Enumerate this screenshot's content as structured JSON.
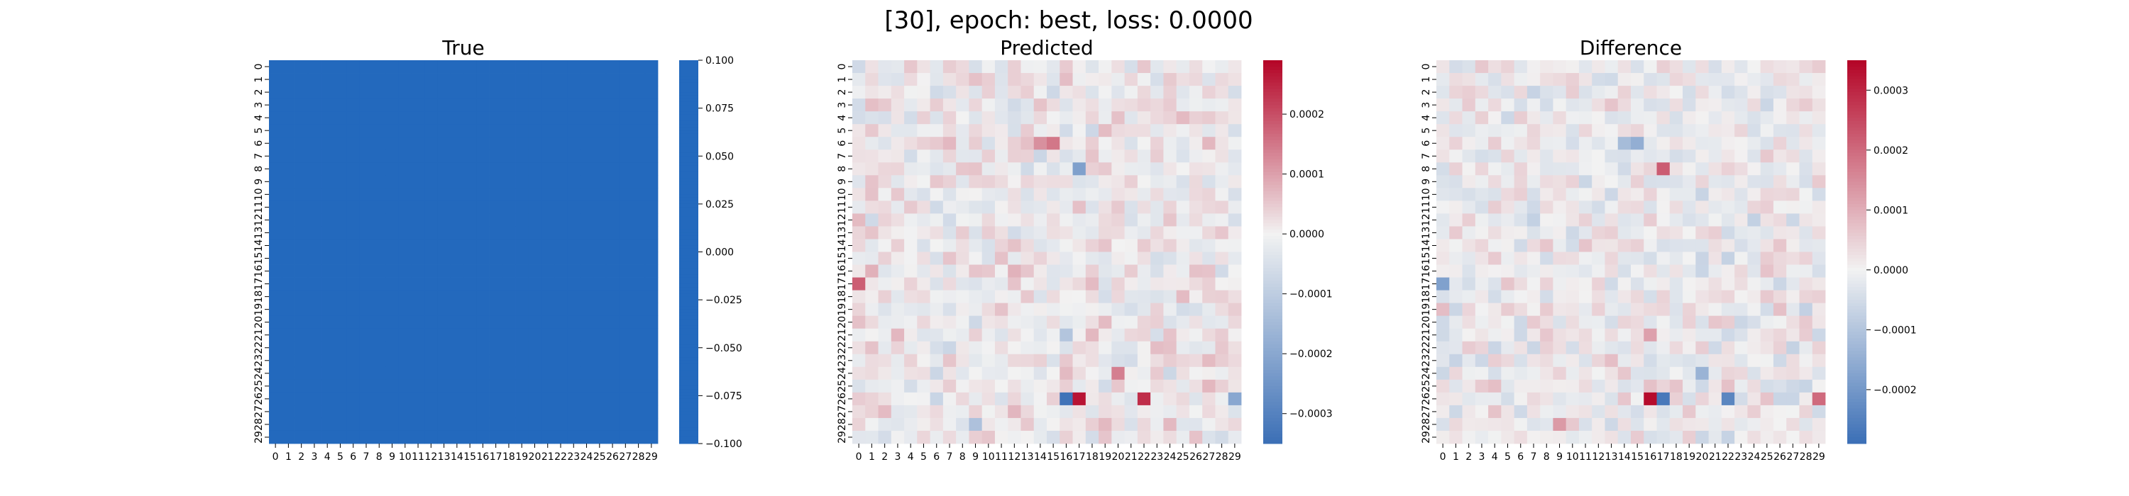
{
  "figure": {
    "title": "[30], epoch: best, loss: 0.0000"
  },
  "palette": {
    "low": "#3b6fb6",
    "mid": "#f2f2f2",
    "high": "#b40426",
    "flat": "#2369bd"
  },
  "chart_data": [
    {
      "type": "heatmap",
      "title": "True",
      "rows": 30,
      "cols": 30,
      "row_labels": [
        "0",
        "1",
        "2",
        "3",
        "4",
        "5",
        "6",
        "7",
        "8",
        "9",
        "10",
        "11",
        "12",
        "13",
        "14",
        "15",
        "16",
        "17",
        "18",
        "19",
        "20",
        "21",
        "22",
        "23",
        "24",
        "25",
        "26",
        "27",
        "28",
        "29"
      ],
      "col_labels": [
        "0",
        "1",
        "2",
        "3",
        "4",
        "5",
        "6",
        "7",
        "8",
        "9",
        "10",
        "11",
        "12",
        "13",
        "14",
        "15",
        "16",
        "17",
        "18",
        "19",
        "20",
        "21",
        "22",
        "23",
        "24",
        "25",
        "26",
        "27",
        "28",
        "29"
      ],
      "uniform_value": 0,
      "vmin": -0.1,
      "vmax": 0.1,
      "colorbar_ticks": [
        0.1,
        0.075,
        0.05,
        0.025,
        0.0,
        -0.025,
        -0.05,
        -0.075,
        -0.1
      ],
      "colorbar_tick_labels": [
        "0.100",
        "0.075",
        "0.050",
        "0.025",
        "0.000",
        "−0.025",
        "−0.050",
        "−0.075",
        "−0.100"
      ]
    },
    {
      "type": "heatmap",
      "title": "Predicted",
      "rows": 30,
      "cols": 30,
      "row_labels": [
        "0",
        "1",
        "2",
        "3",
        "4",
        "5",
        "6",
        "7",
        "8",
        "9",
        "10",
        "11",
        "12",
        "13",
        "14",
        "15",
        "16",
        "17",
        "18",
        "19",
        "20",
        "21",
        "22",
        "23",
        "24",
        "25",
        "26",
        "27",
        "28",
        "29"
      ],
      "col_labels": [
        "0",
        "1",
        "2",
        "3",
        "4",
        "5",
        "6",
        "7",
        "8",
        "9",
        "10",
        "11",
        "12",
        "13",
        "14",
        "15",
        "16",
        "17",
        "18",
        "19",
        "20",
        "21",
        "22",
        "23",
        "24",
        "25",
        "26",
        "27",
        "28",
        "29"
      ],
      "vmin": -0.00035,
      "vmax": 0.00029,
      "colorbar_ticks": [
        0.0002,
        0.0001,
        0.0,
        -0.0001,
        -0.0002,
        -0.0003
      ],
      "colorbar_tick_labels": [
        "0.0002",
        "0.0001",
        "0.0000",
        "−0.0001",
        "−0.0002",
        "−0.0003"
      ],
      "noise_scale": 5e-05,
      "highlights": [
        {
          "row": 26,
          "col": 16,
          "value": -0.00034
        },
        {
          "row": 26,
          "col": 17,
          "value": 0.00027
        },
        {
          "row": 26,
          "col": 22,
          "value": 0.00024
        },
        {
          "row": 26,
          "col": 29,
          "value": -0.0002
        },
        {
          "row": 8,
          "col": 17,
          "value": -0.00022
        },
        {
          "row": 17,
          "col": 0,
          "value": 0.00018
        },
        {
          "row": 28,
          "col": 9,
          "value": -0.00013
        },
        {
          "row": 6,
          "col": 15,
          "value": 0.00015
        },
        {
          "row": 6,
          "col": 14,
          "value": 0.00012
        },
        {
          "row": 24,
          "col": 20,
          "value": 0.00014
        },
        {
          "row": 21,
          "col": 16,
          "value": -0.00012
        }
      ]
    },
    {
      "type": "heatmap",
      "title": "Difference",
      "rows": 30,
      "cols": 30,
      "row_labels": [
        "0",
        "1",
        "2",
        "3",
        "4",
        "5",
        "6",
        "7",
        "8",
        "9",
        "10",
        "11",
        "12",
        "13",
        "14",
        "15",
        "16",
        "17",
        "18",
        "19",
        "20",
        "21",
        "22",
        "23",
        "24",
        "25",
        "26",
        "27",
        "28",
        "29"
      ],
      "col_labels": [
        "0",
        "1",
        "2",
        "3",
        "4",
        "5",
        "6",
        "7",
        "8",
        "9",
        "10",
        "11",
        "12",
        "13",
        "14",
        "15",
        "16",
        "17",
        "18",
        "19",
        "20",
        "21",
        "22",
        "23",
        "24",
        "25",
        "26",
        "27",
        "28",
        "29"
      ],
      "vmin": -0.00029,
      "vmax": 0.00035,
      "colorbar_ticks": [
        0.0003,
        0.0002,
        0.0001,
        0.0,
        -0.0001,
        -0.0002
      ],
      "colorbar_tick_labels": [
        "0.0003",
        "0.0002",
        "0.0001",
        "0.0000",
        "−0.0001",
        "−0.0002"
      ],
      "noise_scale": 5e-05,
      "highlights": [
        {
          "row": 26,
          "col": 16,
          "value": 0.00034
        },
        {
          "row": 26,
          "col": 17,
          "value": -0.00027
        },
        {
          "row": 26,
          "col": 22,
          "value": -0.00024
        },
        {
          "row": 26,
          "col": 29,
          "value": 0.0002
        },
        {
          "row": 8,
          "col": 17,
          "value": 0.00022
        },
        {
          "row": 17,
          "col": 0,
          "value": -0.00018
        },
        {
          "row": 28,
          "col": 9,
          "value": 0.00013
        },
        {
          "row": 6,
          "col": 15,
          "value": -0.00015
        },
        {
          "row": 6,
          "col": 14,
          "value": -0.00012
        },
        {
          "row": 24,
          "col": 20,
          "value": -0.00014
        },
        {
          "row": 21,
          "col": 16,
          "value": 0.00012
        }
      ]
    }
  ]
}
